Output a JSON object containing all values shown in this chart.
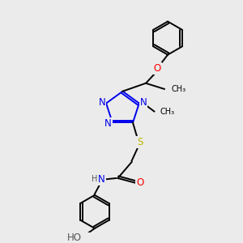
{
  "bg_color": "#ebebeb",
  "atom_colors": {
    "C": "#000000",
    "N": "#0000ee",
    "O": "#ff0000",
    "S": "#bbbb00",
    "H": "#555555"
  },
  "figsize": [
    3.0,
    3.0
  ],
  "dpi": 100,
  "xlim": [
    0,
    10
  ],
  "ylim": [
    0,
    10
  ]
}
